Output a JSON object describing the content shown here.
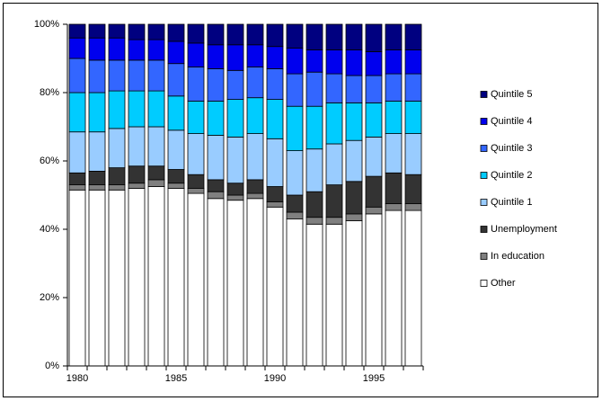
{
  "chart_data": {
    "type": "stacked_bar",
    "categories": [
      1980,
      null,
      null,
      null,
      null,
      1985,
      null,
      null,
      null,
      null,
      1990,
      null,
      null,
      null,
      null,
      1995,
      null,
      null
    ],
    "ylim": [
      0,
      100
    ],
    "yticks": [
      {
        "value": 0,
        "label": "0%"
      },
      {
        "value": 20,
        "label": "20%"
      },
      {
        "value": 40,
        "label": "40%"
      },
      {
        "value": 60,
        "label": "60%"
      },
      {
        "value": 80,
        "label": "80%"
      },
      {
        "value": 100,
        "label": "100%"
      }
    ],
    "legend": "right",
    "series": [
      {
        "name": "Other",
        "color": "#ffffff",
        "values": [
          51.5,
          51.5,
          51.5,
          52,
          52.5,
          52,
          50.5,
          49,
          48.5,
          49,
          46.5,
          43,
          41.5,
          41.5,
          42.5,
          44.5,
          45.5,
          45.5
        ]
      },
      {
        "name": "In education",
        "color": "#808080",
        "values": [
          1.5,
          1.5,
          1.5,
          1.5,
          2,
          1.5,
          1.5,
          2,
          1.5,
          1.5,
          1.5,
          2,
          2,
          2,
          2,
          2,
          2,
          2
        ]
      },
      {
        "name": "Unemployment",
        "color": "#333333",
        "values": [
          3.5,
          4,
          5,
          5,
          4,
          4,
          4,
          3.5,
          3.5,
          4,
          4.5,
          5,
          7.5,
          9.5,
          9.5,
          9,
          9,
          8.5
        ]
      },
      {
        "name": "Quintile 1",
        "color": "#99ccff",
        "values": [
          12,
          11.5,
          11.5,
          11.5,
          11.5,
          11.5,
          12,
          13,
          13.5,
          13.5,
          14,
          13,
          12.5,
          12,
          12,
          11.5,
          11.5,
          12
        ]
      },
      {
        "name": "Quintile 2",
        "color": "#00ccff",
        "values": [
          11.5,
          11.5,
          11,
          10.5,
          10.5,
          10,
          9.5,
          10,
          11,
          10.5,
          11.5,
          13,
          12.5,
          12,
          11,
          10,
          9.5,
          9.5
        ]
      },
      {
        "name": "Quintile 3",
        "color": "#3366ff",
        "values": [
          10,
          9.5,
          9,
          9,
          9,
          9.5,
          10,
          9.5,
          8.5,
          9,
          9,
          9.5,
          10,
          8.5,
          8,
          8,
          8,
          8
        ]
      },
      {
        "name": "Quintile 4",
        "color": "#0000ee",
        "values": [
          6,
          6.5,
          6.5,
          6,
          6,
          6.5,
          7,
          7,
          7.5,
          6.5,
          6.5,
          7.5,
          6.5,
          7,
          7.5,
          7,
          7,
          7
        ]
      },
      {
        "name": "Quintile 5",
        "color": "#000080",
        "values": [
          4,
          4,
          4,
          4.5,
          4.5,
          5,
          5.5,
          6,
          6,
          6,
          6.5,
          7,
          7.5,
          7.5,
          7.5,
          8,
          7.5,
          7.5
        ]
      }
    ]
  }
}
